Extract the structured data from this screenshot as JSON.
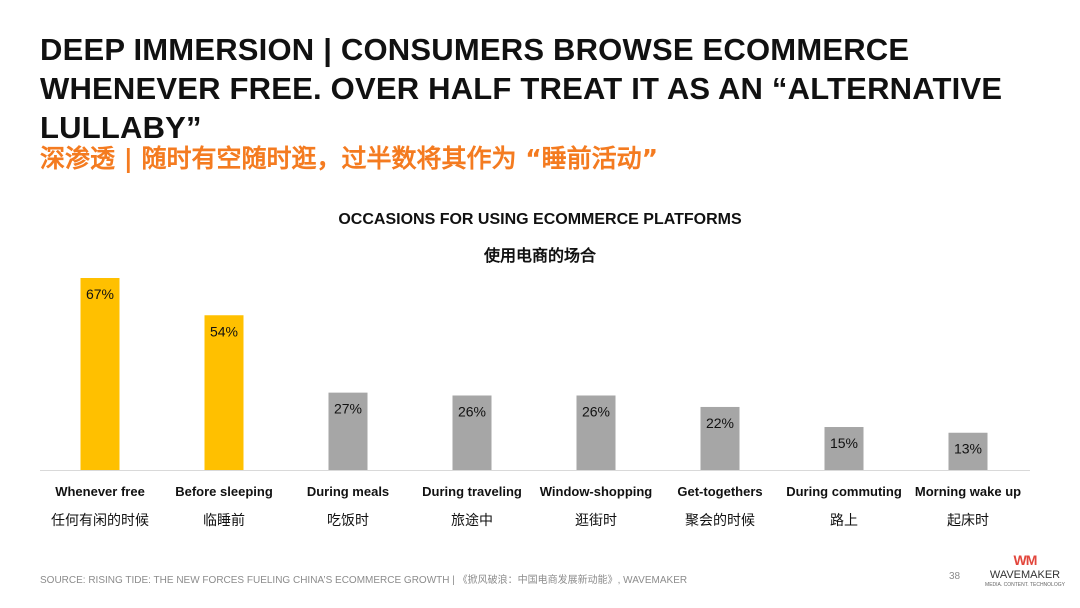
{
  "slide": {
    "title_en": "DEEP IMMERSION | CONSUMERS BROWSE ECOMMERCE WHENEVER FREE. OVER HALF TREAT IT AS AN “ALTERNATIVE LULLABY”",
    "title_cn": "深渗透 | 随时有空随时逛，过半数将其作为 “睡前活动”",
    "source": "SOURCE: RISING TIDE: THE NEW FORCES FUELING CHINA’S ECOMMERCE GROWTH | 《掀风破浪：中国电商发展新动能》, WAVEMAKER",
    "page_number": "38",
    "logo": {
      "mark": "WM",
      "name": "WAVEMAKER",
      "tagline": "MEDIA. CONTENT. TECHNOLOGY"
    }
  },
  "chart_data": {
    "type": "bar",
    "title": "OCCASIONS FOR USING ECOMMERCE PLATFORMS",
    "subtitle": "使用电商的场合",
    "categories": [
      "Whenever free",
      "Before sleeping",
      "During meals",
      "During traveling",
      "Window-shopping",
      "Get-togethers",
      "During commuting",
      "Morning wake up"
    ],
    "categories_cn": [
      "任何有闲的时候",
      "临睡前",
      "吃饭时",
      "旅途中",
      "逛街时",
      "聚会的时候",
      "路上",
      "起床时"
    ],
    "values": [
      67,
      54,
      27,
      26,
      26,
      22,
      15,
      13
    ],
    "value_labels": [
      "67%",
      "54%",
      "27%",
      "26%",
      "26%",
      "22%",
      "15%",
      "13%"
    ],
    "ylim": [
      0,
      67
    ],
    "grid": false,
    "legend": "none",
    "colors": {
      "highlight": "#ffc000",
      "default": "#a6a6a6",
      "baseline": "#d9d9d9",
      "label": "#111111"
    },
    "highlight_indices": [
      0,
      1
    ]
  }
}
